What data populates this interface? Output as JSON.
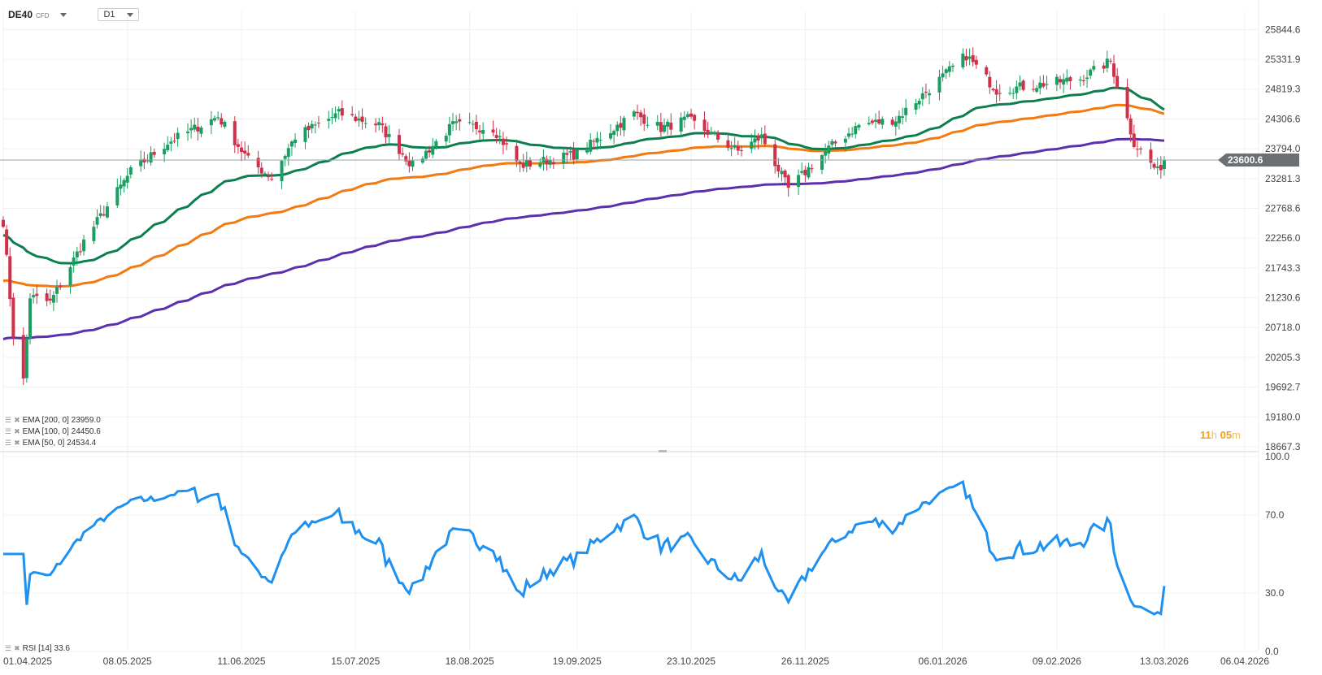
{
  "header": {
    "symbol": "DE40",
    "instrument_type": "CFD",
    "timeframe": "D1"
  },
  "price_axis": {
    "labels": [
      "25844.6",
      "25331.9",
      "24819.3",
      "24306.6",
      "23794.0",
      "23281.3",
      "22768.6",
      "22256.0",
      "21743.3",
      "21230.6",
      "20718.0",
      "20205.3",
      "19692.7",
      "19180.0",
      "18667.3"
    ],
    "current_price": "23600.6"
  },
  "rsi_axis": {
    "labels": [
      "100.0",
      "70.0",
      "30.0",
      "0.0"
    ]
  },
  "date_axis": {
    "labels": [
      "01.04.2025",
      "08.05.2025",
      "11.06.2025",
      "15.07.2025",
      "18.08.2025",
      "19.09.2025",
      "23.10.2025",
      "26.11.2025",
      "06.01.2026",
      "09.02.2026",
      "13.03.2026",
      "06.04.2026"
    ]
  },
  "indicators": {
    "ema200": "EMA [200, 0]  23959.0",
    "ema100": "EMA [100, 0]  24450.6",
    "ema50": "EMA [50, 0]  24534.4",
    "rsi": "RSI [14]  33.6"
  },
  "timer": {
    "hours": "11",
    "h_unit": "h",
    "minutes": "05",
    "m_unit": "m"
  },
  "colors": {
    "up": "#1a9e61",
    "down": "#d1304a",
    "ema50": "#0d7f4f",
    "ema100": "#f27a10",
    "ema200": "#5b2fae",
    "rsi": "#1e90f0",
    "price_line": "#9aa0a6",
    "price_tag": "#6b7075"
  },
  "chart_data": {
    "type": "candlestick",
    "instrument": "DE40",
    "timeframe": "D1",
    "ylim": [
      18667.3,
      26100
    ],
    "x_range": [
      "01.04.2025",
      "06.04.2026"
    ],
    "x_ticks": [
      "01.04.2025",
      "08.05.2025",
      "11.06.2025",
      "15.07.2025",
      "18.08.2025",
      "19.09.2025",
      "23.10.2025",
      "26.11.2025",
      "06.01.2026",
      "09.02.2026",
      "13.03.2026",
      "06.04.2026"
    ],
    "close_anchors": [
      {
        "date": "2025-04-01",
        "close": 22540
      },
      {
        "date": "2025-04-04",
        "close": 20600
      },
      {
        "date": "2025-04-07",
        "close": 19800
      },
      {
        "date": "2025-04-09",
        "close": 21250
      },
      {
        "date": "2025-04-15",
        "close": 21150
      },
      {
        "date": "2025-04-25",
        "close": 22200
      },
      {
        "date": "2025-05-09",
        "close": 23400
      },
      {
        "date": "2025-05-20",
        "close": 23900
      },
      {
        "date": "2025-06-04",
        "close": 24350
      },
      {
        "date": "2025-06-13",
        "close": 23600
      },
      {
        "date": "2025-06-20",
        "close": 23300
      },
      {
        "date": "2025-06-27",
        "close": 24000
      },
      {
        "date": "2025-07-10",
        "close": 24400
      },
      {
        "date": "2025-07-22",
        "close": 24200
      },
      {
        "date": "2025-08-01",
        "close": 23500
      },
      {
        "date": "2025-08-13",
        "close": 24200
      },
      {
        "date": "2025-08-25",
        "close": 24150
      },
      {
        "date": "2025-09-02",
        "close": 23500
      },
      {
        "date": "2025-09-19",
        "close": 23700
      },
      {
        "date": "2025-10-06",
        "close": 24400
      },
      {
        "date": "2025-10-14",
        "close": 24150
      },
      {
        "date": "2025-10-22",
        "close": 24300
      },
      {
        "date": "2025-11-06",
        "close": 23750
      },
      {
        "date": "2025-11-13",
        "close": 24000
      },
      {
        "date": "2025-11-21",
        "close": 23100
      },
      {
        "date": "2025-12-03",
        "close": 23800
      },
      {
        "date": "2025-12-12",
        "close": 24200
      },
      {
        "date": "2025-12-23",
        "close": 24300
      },
      {
        "date": "2026-01-13",
        "close": 25400
      },
      {
        "date": "2026-01-22",
        "close": 24800
      },
      {
        "date": "2026-02-04",
        "close": 24900
      },
      {
        "date": "2026-02-16",
        "close": 25000
      },
      {
        "date": "2026-02-25",
        "close": 25300
      },
      {
        "date": "2026-03-04",
        "close": 23900
      },
      {
        "date": "2026-03-11",
        "close": 23400
      },
      {
        "date": "2026-03-13",
        "close": 23600
      }
    ],
    "last_close": 23600.6,
    "ema": [
      {
        "name": "EMA [200, 0]",
        "last": 23959.0,
        "start": 20500
      },
      {
        "name": "EMA [100, 0]",
        "last": 24450.6,
        "start": 21500
      },
      {
        "name": "EMA [50, 0]",
        "last": 24534.4,
        "start": 22300
      }
    ],
    "rsi": {
      "name": "RSI [14]",
      "last": 33.6,
      "ylim": [
        0,
        100
      ],
      "levels": [
        30,
        70
      ]
    }
  }
}
